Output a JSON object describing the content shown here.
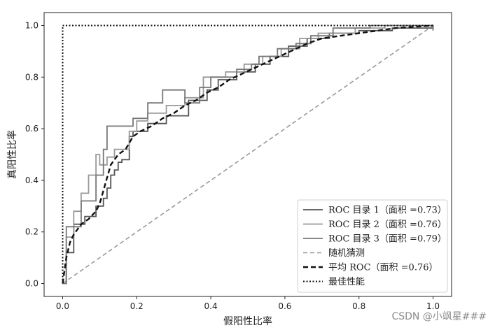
{
  "chart_data": {
    "type": "line",
    "xlabel": "假阳性比率",
    "ylabel": "真阳性比率",
    "xlim": [
      -0.05,
      1.05
    ],
    "ylim": [
      -0.05,
      1.05
    ],
    "xticks": [
      "0.0",
      "0.2",
      "0.4",
      "0.6",
      "0.8",
      "1.0"
    ],
    "yticks": [
      "0.0",
      "0.2",
      "0.4",
      "0.6",
      "0.8",
      "1.0"
    ],
    "legend_position": "lower right",
    "grid": false,
    "series": [
      {
        "name": "ROC 目录 1（面积 =0.73）",
        "color": "#555555",
        "style": "solid",
        "x": [
          0,
          0.01,
          0.01,
          0.03,
          0.03,
          0.06,
          0.06,
          0.09,
          0.09,
          0.11,
          0.11,
          0.12,
          0.12,
          0.13,
          0.13,
          0.14,
          0.14,
          0.15,
          0.15,
          0.16,
          0.16,
          0.18,
          0.18,
          0.19,
          0.19,
          0.23,
          0.23,
          0.28,
          0.28,
          0.34,
          0.34,
          0.39,
          0.39,
          0.42,
          0.42,
          0.47,
          0.47,
          0.52,
          0.52,
          0.56,
          0.56,
          0.61,
          0.61,
          0.66,
          0.66,
          0.72,
          0.72,
          0.8,
          0.8,
          0.89,
          0.89,
          1.0,
          1.0
        ],
        "y": [
          0,
          0,
          0.12,
          0.12,
          0.23,
          0.23,
          0.26,
          0.26,
          0.3,
          0.3,
          0.33,
          0.33,
          0.37,
          0.37,
          0.42,
          0.42,
          0.44,
          0.44,
          0.47,
          0.47,
          0.48,
          0.48,
          0.57,
          0.57,
          0.59,
          0.59,
          0.62,
          0.62,
          0.65,
          0.65,
          0.71,
          0.71,
          0.75,
          0.75,
          0.79,
          0.79,
          0.82,
          0.82,
          0.85,
          0.85,
          0.88,
          0.88,
          0.92,
          0.92,
          0.95,
          0.95,
          0.97,
          0.97,
          0.98,
          0.98,
          0.99,
          0.99,
          1.0
        ]
      },
      {
        "name": "ROC 目录 2（面积 =0.76）",
        "color": "#999999",
        "style": "solid",
        "x": [
          0,
          0.01,
          0.01,
          0.03,
          0.03,
          0.05,
          0.05,
          0.07,
          0.07,
          0.09,
          0.09,
          0.1,
          0.1,
          0.12,
          0.12,
          0.14,
          0.14,
          0.18,
          0.18,
          0.2,
          0.2,
          0.23,
          0.23,
          0.28,
          0.28,
          0.33,
          0.33,
          0.38,
          0.38,
          0.44,
          0.44,
          0.49,
          0.49,
          0.54,
          0.54,
          0.59,
          0.59,
          0.64,
          0.64,
          0.69,
          0.69,
          0.79,
          0.79,
          0.87,
          0.87,
          1.0,
          1.0
        ],
        "y": [
          0,
          0,
          0.18,
          0.18,
          0.28,
          0.28,
          0.35,
          0.35,
          0.42,
          0.42,
          0.5,
          0.5,
          0.46,
          0.46,
          0.49,
          0.49,
          0.52,
          0.52,
          0.59,
          0.59,
          0.63,
          0.63,
          0.66,
          0.66,
          0.69,
          0.69,
          0.72,
          0.72,
          0.8,
          0.8,
          0.82,
          0.82,
          0.85,
          0.85,
          0.88,
          0.88,
          0.91,
          0.91,
          0.95,
          0.95,
          0.97,
          0.97,
          0.99,
          0.99,
          1.0,
          1.0,
          0.99
        ]
      },
      {
        "name": "ROC 目录 3（面积 =0.79）",
        "color": "#777777",
        "style": "solid",
        "x": [
          0,
          0.01,
          0.01,
          0.05,
          0.05,
          0.09,
          0.09,
          0.11,
          0.11,
          0.12,
          0.12,
          0.19,
          0.19,
          0.23,
          0.23,
          0.27,
          0.27,
          0.33,
          0.33,
          0.37,
          0.37,
          0.4,
          0.4,
          0.47,
          0.47,
          0.51,
          0.51,
          0.53,
          0.53,
          0.58,
          0.58,
          0.63,
          0.63,
          0.67,
          0.67,
          0.73,
          0.73,
          0.83,
          0.83,
          1.0,
          1.0
        ],
        "y": [
          0,
          0,
          0.22,
          0.22,
          0.32,
          0.32,
          0.42,
          0.42,
          0.52,
          0.52,
          0.61,
          0.61,
          0.64,
          0.64,
          0.7,
          0.7,
          0.75,
          0.75,
          0.7,
          0.7,
          0.76,
          0.76,
          0.8,
          0.8,
          0.83,
          0.83,
          0.85,
          0.85,
          0.88,
          0.88,
          0.91,
          0.91,
          0.93,
          0.93,
          0.96,
          0.96,
          0.99,
          0.99,
          1.0,
          1.0,
          0.98
        ]
      },
      {
        "name": "随机猜测",
        "color": "#999999",
        "style": "dashed",
        "x": [
          0,
          1
        ],
        "y": [
          0,
          1
        ]
      },
      {
        "name": "平均 ROC（面积 =0.76）",
        "color": "#111111",
        "style": "dashed-bold",
        "x": [
          0,
          0.01,
          0.02,
          0.03,
          0.05,
          0.07,
          0.09,
          0.1,
          0.11,
          0.12,
          0.13,
          0.15,
          0.17,
          0.19,
          0.21,
          0.24,
          0.27,
          0.3,
          0.33,
          0.36,
          0.39,
          0.42,
          0.45,
          0.48,
          0.51,
          0.54,
          0.57,
          0.6,
          0.63,
          0.66,
          0.7,
          0.75,
          0.8,
          0.85,
          0.9,
          0.95,
          1.0
        ],
        "y": [
          0,
          0.1,
          0.16,
          0.19,
          0.23,
          0.25,
          0.28,
          0.31,
          0.36,
          0.41,
          0.46,
          0.5,
          0.52,
          0.57,
          0.59,
          0.61,
          0.64,
          0.66,
          0.69,
          0.71,
          0.74,
          0.76,
          0.79,
          0.81,
          0.83,
          0.85,
          0.87,
          0.89,
          0.91,
          0.93,
          0.95,
          0.96,
          0.97,
          0.98,
          0.99,
          0.995,
          1.0
        ]
      },
      {
        "name": "最佳性能",
        "color": "#111111",
        "style": "dotted",
        "x": [
          0,
          0,
          1
        ],
        "y": [
          0,
          1,
          1
        ]
      }
    ]
  },
  "watermark": "CSDN @小飒星###"
}
